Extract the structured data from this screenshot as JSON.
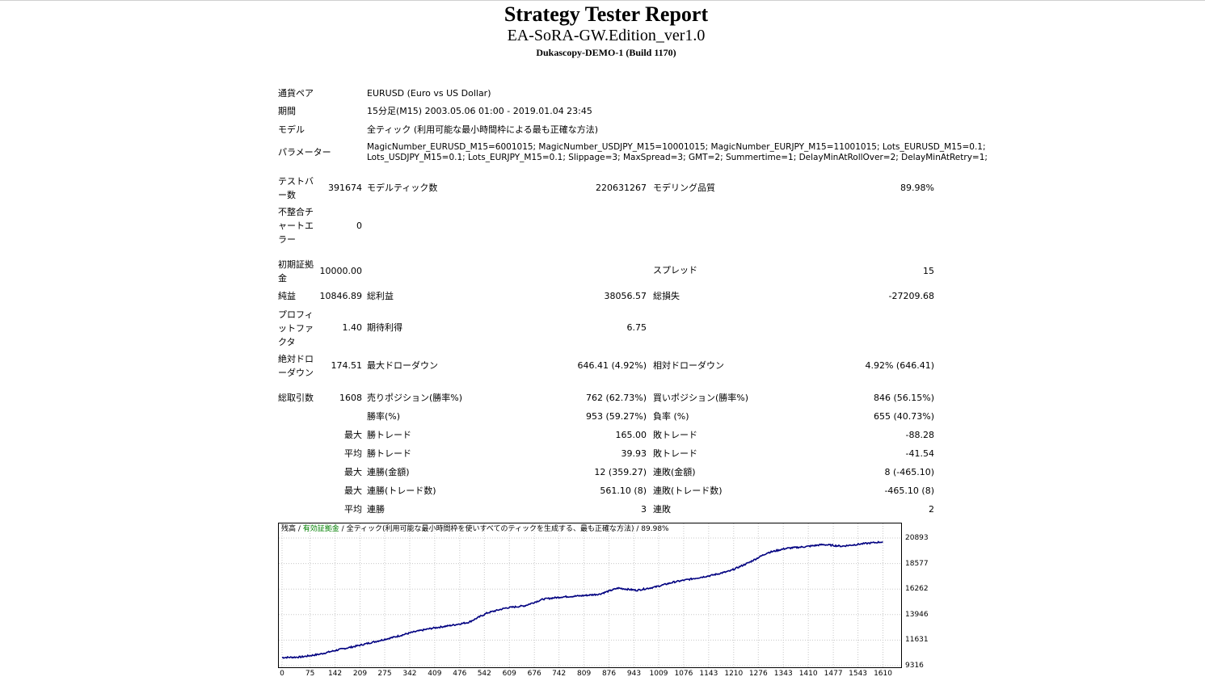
{
  "header": {
    "title": "Strategy Tester Report",
    "ea_name": "EA-SoRA-GW.Edition_ver1.0",
    "server": "Dukascopy-DEMO-1 (Build 1170)"
  },
  "info": {
    "symbol_label": "通貨ペア",
    "symbol_value": "EURUSD (Euro vs US Dollar)",
    "period_label": "期間",
    "period_value": "15分足(M15) 2003.05.06 01:00 - 2019.01.04 23:45",
    "model_label": "モデル",
    "model_value": "全ティック (利用可能な最小時間枠による最も正確な方法)",
    "params_label": "パラメーター",
    "params_line1": "MagicNumber_EURUSD_M15=6001015; MagicNumber_USDJPY_M15=10001015; MagicNumber_EURJPY_M15=11001015; Lots_EURUSD_M15=0.1;",
    "params_line2": "Lots_USDJPY_M15=0.1; Lots_EURJPY_M15=0.1; Slippage=3; MaxSpread=3; GMT=2; Summertime=1; DelayMinAtRollOver=2; DelayMinAtRetry=1;"
  },
  "stats": {
    "bars_label": "テストバー数",
    "bars_value": "391674",
    "ticks_label": "モデルティック数",
    "ticks_value": "220631267",
    "quality_label": "モデリング品質",
    "quality_value": "89.98%",
    "mismatch_label": "不整合チャートエラー",
    "mismatch_value": "0",
    "deposit_label": "初期証拠金",
    "deposit_value": "10000.00",
    "spread_label": "スプレッド",
    "spread_value": "15",
    "net_label": "純益",
    "net_value": "10846.89",
    "gross_profit_label": "総利益",
    "gross_profit_value": "38056.57",
    "gross_loss_label": "総損失",
    "gross_loss_value": "-27209.68",
    "pf_label": "プロフィットファクタ",
    "pf_value": "1.40",
    "expected_label": "期待利得",
    "expected_value": "6.75",
    "abs_dd_label": "絶対ドローダウン",
    "abs_dd_value": "174.51",
    "max_dd_label": "最大ドローダウン",
    "max_dd_value": "646.41 (4.92%)",
    "rel_dd_label": "相対ドローダウン",
    "rel_dd_value": "4.92% (646.41)",
    "total_trades_label": "総取引数",
    "total_trades_value": "1608",
    "short_label": "売りポジション(勝率%)",
    "short_value": "762 (62.73%)",
    "long_label": "買いポジション(勝率%)",
    "long_value": "846 (56.15%)",
    "win_rate_label": "勝率(%)",
    "win_rate_value": "953 (59.27%)",
    "loss_rate_label": "負率 (%)",
    "loss_rate_value": "655 (40.73%)",
    "max_label": "最大",
    "avg_label": "平均",
    "win_trade_label": "勝トレード",
    "loss_trade_label": "敗トレード",
    "largest_win_value": "165.00",
    "largest_loss_value": "-88.28",
    "avg_win_value": "39.93",
    "avg_loss_value": "-41.54",
    "cons_wins_money_label": "連勝(金額)",
    "cons_wins_money_value": "12 (359.27)",
    "cons_loss_money_label": "連敗(金額)",
    "cons_loss_money_value": "8 (-465.10)",
    "cons_wins_count_label": "連勝(トレード数)",
    "cons_wins_count_value": "561.10 (8)",
    "cons_loss_count_label": "連敗(トレード数)",
    "cons_loss_count_value": "-465.10 (8)",
    "avg_cons_win_label": "連勝",
    "avg_cons_win_value": "3",
    "avg_cons_loss_label": "連敗",
    "avg_cons_loss_value": "2"
  },
  "chart_data": {
    "type": "line",
    "legend": {
      "balance": "残高",
      "sep1": " / ",
      "equity": "有効証拠金",
      "sep2": " / ",
      "model": "全ティック(利用可能な最小時間枠を使いすべてのティックを生成する、最も正確な方法)",
      "sep3": " / ",
      "quality": "89.98%"
    },
    "line_color": "#000080",
    "ylim": [
      9316,
      20893
    ],
    "yticks": [
      "20893",
      "18577",
      "16262",
      "13946",
      "11631",
      "9316"
    ],
    "xticks": [
      "0",
      "75",
      "142",
      "209",
      "275",
      "342",
      "409",
      "476",
      "542",
      "609",
      "676",
      "742",
      "809",
      "876",
      "943",
      "1009",
      "1076",
      "1143",
      "1210",
      "1276",
      "1343",
      "1410",
      "1477",
      "1543",
      "1610"
    ],
    "xlim": [
      0,
      1650
    ],
    "series": [
      {
        "x": [
          0,
          50,
          100,
          150,
          200,
          250,
          300,
          350,
          400,
          450,
          500,
          550,
          600,
          650,
          700,
          750,
          800,
          850,
          900,
          950,
          1000,
          1050,
          1100,
          1150,
          1200,
          1250,
          1300,
          1350,
          1400,
          1450,
          1500,
          1550,
          1610
        ],
        "values": [
          10050,
          10100,
          10350,
          10750,
          11100,
          11500,
          11900,
          12350,
          12700,
          12950,
          13250,
          14100,
          14550,
          14750,
          15350,
          15550,
          15650,
          15800,
          16350,
          16150,
          16450,
          16900,
          17200,
          17500,
          17900,
          18650,
          19550,
          19950,
          20100,
          20300,
          20150,
          20350,
          20550
        ]
      }
    ]
  }
}
